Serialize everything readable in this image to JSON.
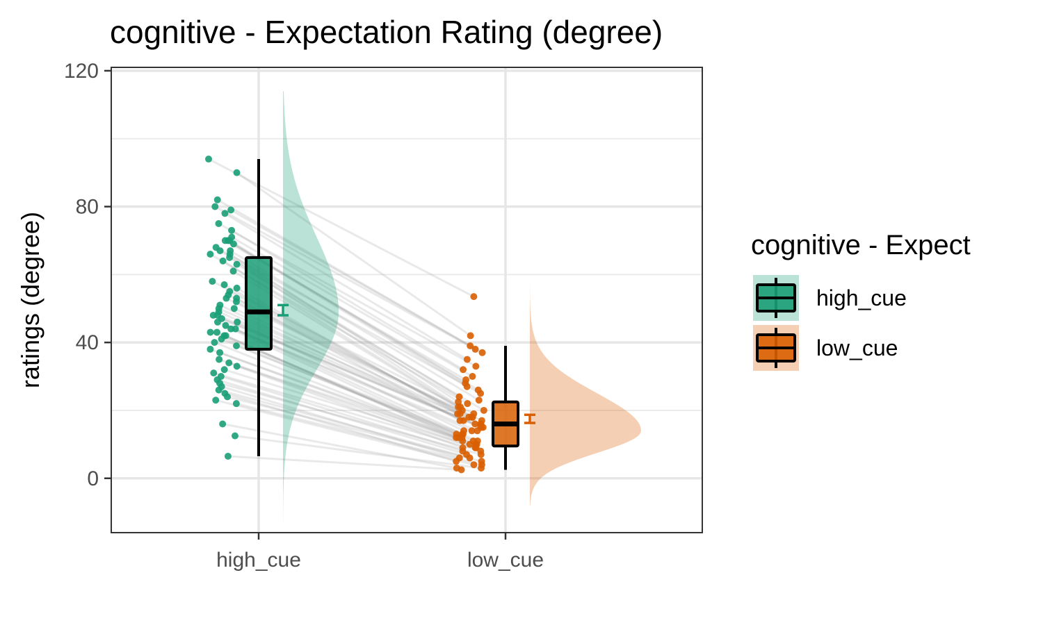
{
  "chart_data": {
    "type": "raincloud",
    "title": "cognitive  - Expectation Rating (degree)",
    "xlabel": "",
    "ylabel": "ratings (degree)",
    "ylim": [
      -16,
      121
    ],
    "yticks": [
      0,
      40,
      80,
      120
    ],
    "categories": [
      "high_cue",
      "low_cue"
    ],
    "grid": true,
    "legend": {
      "title": "cognitive  - Expect",
      "placement": "right",
      "entries": [
        "high_cue",
        "low_cue"
      ]
    },
    "colors": {
      "high_cue": "#1b9e77",
      "low_cue": "#d95f02"
    },
    "series": [
      {
        "name": "high_cue",
        "box": {
          "min": 6.5,
          "q1": 38,
          "median": 49,
          "q3": 65,
          "max": 94
        },
        "mean": 49.5,
        "se": 1.5,
        "density_range": [
          -13,
          114
        ],
        "density_mode": 49,
        "points": [
          94,
          90,
          82,
          80,
          79,
          78,
          75,
          73,
          71,
          70,
          70,
          70,
          69,
          68,
          67,
          67,
          66,
          66,
          65,
          64,
          63,
          61,
          58,
          57,
          56,
          55,
          54,
          53,
          53,
          52,
          51,
          50,
          50,
          49,
          48,
          48,
          47,
          46,
          46,
          45,
          44,
          44,
          43,
          43,
          42,
          42,
          41,
          40,
          39,
          38,
          37,
          35,
          34,
          33,
          32,
          31,
          30,
          29,
          28,
          27,
          26,
          25,
          24,
          23,
          22,
          16,
          12.5,
          6.5
        ]
      },
      {
        "name": "low_cue",
        "box": {
          "min": 2.5,
          "q1": 9.5,
          "median": 16,
          "q3": 22.5,
          "max": 39
        },
        "mean": 17.5,
        "se": 1.2,
        "density_range": [
          -8,
          64
        ],
        "density_mode": 14,
        "points": [
          53.5,
          42,
          39,
          38,
          37,
          35,
          33,
          32,
          30,
          29,
          28,
          27,
          26,
          25,
          24,
          23,
          22.5,
          22,
          21,
          21,
          20,
          20,
          19,
          19,
          18,
          18,
          17,
          17,
          16,
          16,
          15,
          15,
          14,
          14,
          13,
          13,
          12,
          12,
          11,
          11,
          10,
          10,
          9,
          9,
          8,
          8,
          7,
          7,
          6,
          6,
          5,
          5,
          4,
          4,
          3,
          3,
          2.5,
          15,
          14,
          16,
          17,
          13,
          12,
          18,
          19,
          11,
          10,
          9
        ]
      }
    ]
  }
}
